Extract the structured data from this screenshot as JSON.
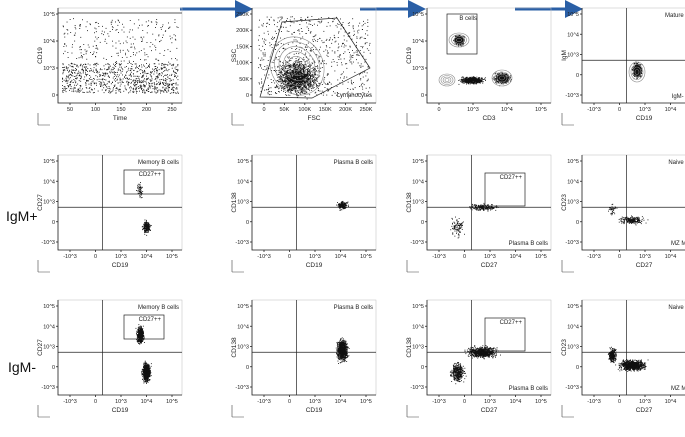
{
  "row_labels": {
    "igm_pos": "IgM+",
    "igm_neg": "IgM-"
  },
  "panels": [
    {
      "id": "r1c1",
      "y_label": "CD19",
      "x_label": "Time",
      "y_ticks": [
        "10^5",
        "10^4",
        "10^3",
        "0"
      ],
      "x_ticks": [
        "50",
        "100",
        "150",
        "200",
        "250"
      ],
      "labels": []
    },
    {
      "id": "r1c2",
      "y_label": "SSC",
      "x_label": "FSC",
      "y_ticks": [
        "250K",
        "200K",
        "150K",
        "100K",
        "50K",
        "0"
      ],
      "x_ticks": [
        "0",
        "50K",
        "100K",
        "150K",
        "200K",
        "250K"
      ],
      "labels": [
        "Lymphocytes"
      ]
    },
    {
      "id": "r1c3",
      "y_label": "CD19",
      "x_label": "CD3",
      "y_ticks": [
        "10^5",
        "10^4",
        "10^3",
        "0"
      ],
      "x_ticks": [
        "0",
        "10^3",
        "10^4",
        "10^5"
      ],
      "labels": [
        "B cells"
      ]
    },
    {
      "id": "r1c4",
      "y_label": "IgM",
      "x_label": "CD19",
      "y_ticks": [
        "10^5",
        "10^4",
        "10^3",
        "0",
        "-10^3"
      ],
      "x_ticks": [
        "-10^3",
        "0",
        "10^3",
        "10^4",
        "10^5"
      ],
      "labels": [
        "Mature B cells",
        "IgM- B cells"
      ]
    },
    {
      "id": "r2c1",
      "y_label": "CD27",
      "x_label": "CD19",
      "y_ticks": [
        "10^5",
        "10^4",
        "10^3",
        "0",
        "-10^3"
      ],
      "x_ticks": [
        "-10^3",
        "0",
        "10^3",
        "10^4",
        "10^5"
      ],
      "labels": [
        "Memory B cells",
        "CD27++"
      ]
    },
    {
      "id": "r2c2",
      "y_label": "CD138",
      "x_label": "CD19",
      "y_ticks": [
        "10^5",
        "10^4",
        "10^3",
        "0",
        "-10^3"
      ],
      "x_ticks": [
        "-10^3",
        "0",
        "10^3",
        "10^4",
        "10^5"
      ],
      "labels": [
        "Plasma B cells"
      ]
    },
    {
      "id": "r2c3",
      "y_label": "CD138",
      "x_label": "CD27",
      "y_ticks": [
        "10^5",
        "10^4",
        "10^3",
        "0",
        "-10^3"
      ],
      "x_ticks": [
        "-10^3",
        "0",
        "10^3",
        "10^4",
        "10^5"
      ],
      "labels": [
        "CD27++",
        "Plasma B cells"
      ]
    },
    {
      "id": "r2c4",
      "y_label": "CD23",
      "x_label": "CD27",
      "y_ticks": [
        "10^5",
        "10^4",
        "10^3",
        "0",
        "-10^3"
      ],
      "x_ticks": [
        "-10^3",
        "0",
        "10^3",
        "10^4",
        "10^5"
      ],
      "labels": [
        "Naive B cells",
        "MZ Memory"
      ]
    },
    {
      "id": "r3c1",
      "y_label": "CD27",
      "x_label": "CD19",
      "y_ticks": [
        "10^5",
        "10^4",
        "10^3",
        "0",
        "-10^3"
      ],
      "x_ticks": [
        "-10^3",
        "0",
        "10^3",
        "10^4",
        "10^5"
      ],
      "labels": [
        "Memory B cells",
        "CD27++"
      ]
    },
    {
      "id": "r3c2",
      "y_label": "CD138",
      "x_label": "CD19",
      "y_ticks": [
        "10^5",
        "10^4",
        "10^3",
        "0",
        "-10^3"
      ],
      "x_ticks": [
        "-10^3",
        "0",
        "10^3",
        "10^4",
        "10^5"
      ],
      "labels": [
        "Plasma B cells"
      ]
    },
    {
      "id": "r3c3",
      "y_label": "CD138",
      "x_label": "CD27",
      "y_ticks": [
        "10^5",
        "10^4",
        "10^3",
        "0",
        "-10^3"
      ],
      "x_ticks": [
        "-10^3",
        "0",
        "10^3",
        "10^4",
        "10^5"
      ],
      "labels": [
        "CD27++",
        "Plasma B cells"
      ]
    },
    {
      "id": "r3c4",
      "y_label": "CD23",
      "x_label": "CD27",
      "y_ticks": [
        "10^5",
        "10^4",
        "10^3",
        "0",
        "-10^3"
      ],
      "x_ticks": [
        "-10^3",
        "0",
        "10^3",
        "10^4",
        "10^5"
      ],
      "labels": [
        "Naive B cells",
        "MZ Memory"
      ]
    }
  ],
  "colors": {
    "arrow": "#2a5fa6",
    "dots": "#111111",
    "contour": "#8a8a8a"
  }
}
